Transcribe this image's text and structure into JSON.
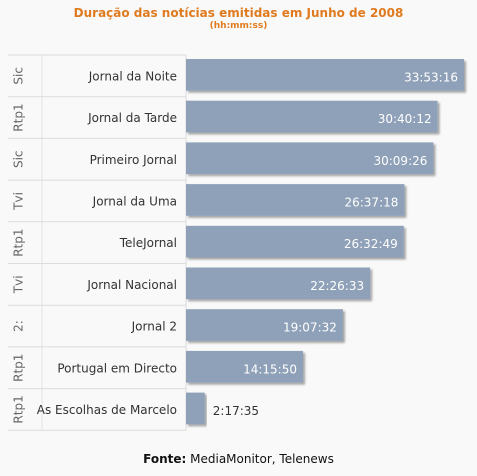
{
  "chart_data": {
    "type": "bar",
    "title": "Duração das notícias emitidas em Junho de 2008",
    "subtitle": "(hh:mm:ss)",
    "categories": [
      "Jornal da Noite",
      "Jornal da Tarde",
      "Primeiro Jornal",
      "Jornal da Uma",
      "TeleJornal",
      "Jornal Nacional",
      "Jornal 2",
      "Portugal em Directo",
      "As Escolhas de Marcelo"
    ],
    "channels": [
      "Sic",
      "Rtp1",
      "Sic",
      "Tvi",
      "Rtp1",
      "Tvi",
      "2:",
      "Rtp1",
      "Rtp1"
    ],
    "value_labels": [
      "33:53:16",
      "30:40:12",
      "30:09:26",
      "26:37:18",
      "26:32:49",
      "22:26:33",
      "19:07:32",
      "14:15:50",
      "2:17:35"
    ],
    "values_seconds": [
      121996,
      110412,
      108566,
      95838,
      95569,
      80793,
      68852,
      51350,
      8255
    ],
    "orientation": "horizontal",
    "bar_color": "#8fa1b8"
  },
  "source": {
    "label": "Fonte:",
    "text": "MediaMonitor, Telenews"
  }
}
